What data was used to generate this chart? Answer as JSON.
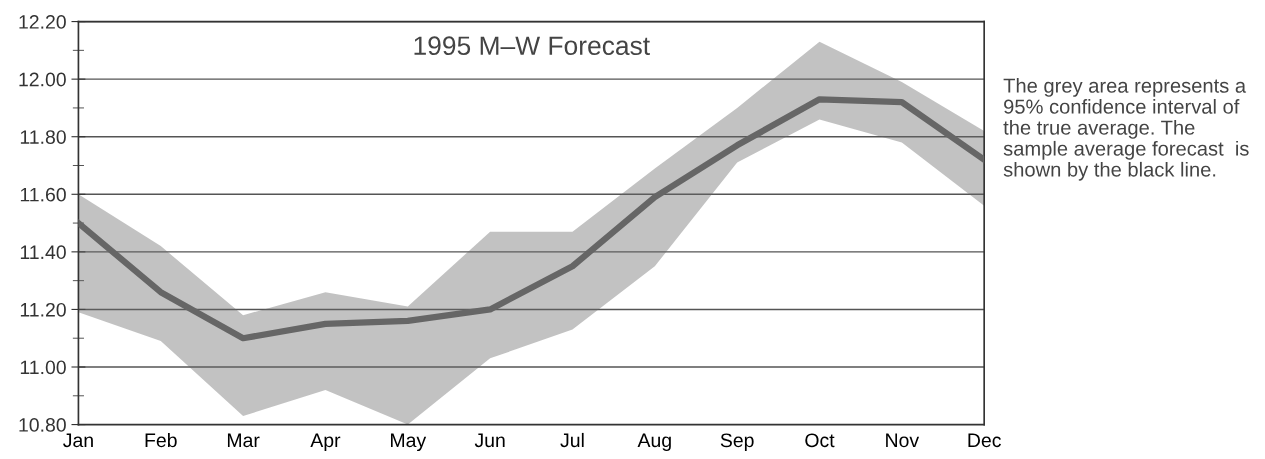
{
  "chart_data": {
    "type": "line",
    "title": "1995 M–W Forecast",
    "categories": [
      "Jan",
      "Feb",
      "Mar",
      "Apr",
      "May",
      "Jun",
      "Jul",
      "Aug",
      "Sep",
      "Oct",
      "Nov",
      "Dec"
    ],
    "series": [
      {
        "color": "#666666",
        "values": [
          11.5,
          11.26,
          11.1,
          11.15,
          11.16,
          11.2,
          11.35,
          11.59,
          11.77,
          11.93,
          11.92,
          11.72
        ],
        "lower": [
          11.19,
          11.09,
          10.83,
          10.92,
          10.8,
          11.03,
          11.13,
          11.35,
          11.71,
          11.86,
          11.78,
          11.56
        ],
        "upper": [
          11.6,
          11.42,
          11.18,
          11.26,
          11.21,
          11.47,
          11.47,
          11.69,
          11.9,
          12.13,
          11.99,
          11.82
        ]
      }
    ],
    "ylim": [
      10.8,
      12.2
    ],
    "yticks": [
      {
        "value": 10.8,
        "label": "10.80"
      },
      {
        "value": 11.0,
        "label": "11.00"
      },
      {
        "value": 11.2,
        "label": "11.20"
      },
      {
        "value": 11.4,
        "label": "11.40"
      },
      {
        "value": 11.6,
        "label": "11.60"
      },
      {
        "value": 11.8,
        "label": "11.80"
      },
      {
        "value": 12.0,
        "label": "12.00"
      },
      {
        "value": 12.2,
        "label": "12.20"
      }
    ],
    "grid": "y",
    "marker": "none",
    "line_style": "solid",
    "annotations": [
      "The grey area represents a 95% confidence interval of the true average. The sample average forecast  is shown by the black line."
    ]
  }
}
